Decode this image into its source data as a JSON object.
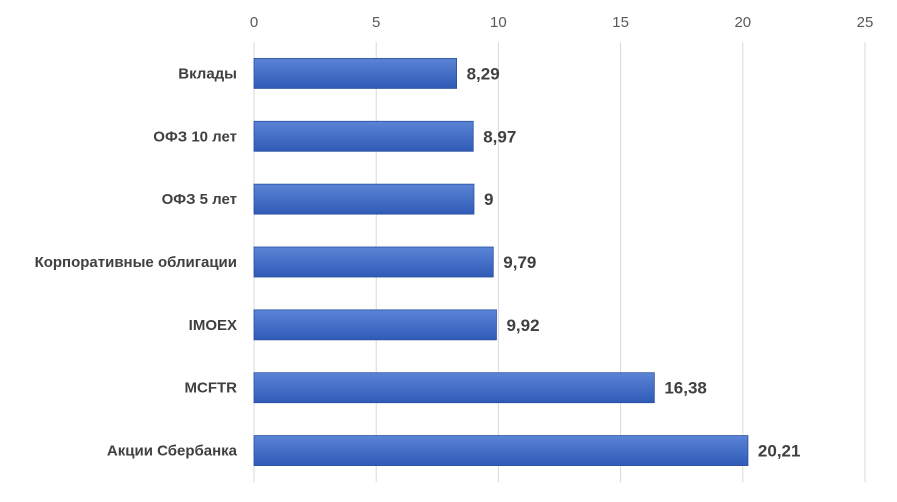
{
  "chart_data": {
    "type": "bar",
    "orientation": "horizontal",
    "categories": [
      "Вклады",
      "ОФЗ 10 лет",
      "ОФЗ 5 лет",
      "Корпоративные облигации",
      "IMOEX",
      "MCFTR",
      "Акции Сбербанка"
    ],
    "values": [
      8.29,
      8.97,
      9,
      9.79,
      9.92,
      16.38,
      20.21
    ],
    "value_labels": [
      "8,29",
      "8,97",
      "9",
      "9,79",
      "9,92",
      "16,38",
      "20,21"
    ],
    "xlim": [
      0,
      25
    ],
    "x_ticks": [
      0,
      5,
      10,
      15,
      20,
      25
    ],
    "x_tick_labels": [
      "0",
      "5",
      "10",
      "15",
      "20",
      "25"
    ],
    "x_axis_position": "top",
    "title": "",
    "xlabel": "",
    "ylabel": "",
    "grid": true,
    "legend": false,
    "colors": {
      "bar_light": "#5b84d6",
      "bar_dark": "#2f5bb7",
      "bar_stroke": "#2a4f9f",
      "grid": "#d9d9d9"
    }
  }
}
